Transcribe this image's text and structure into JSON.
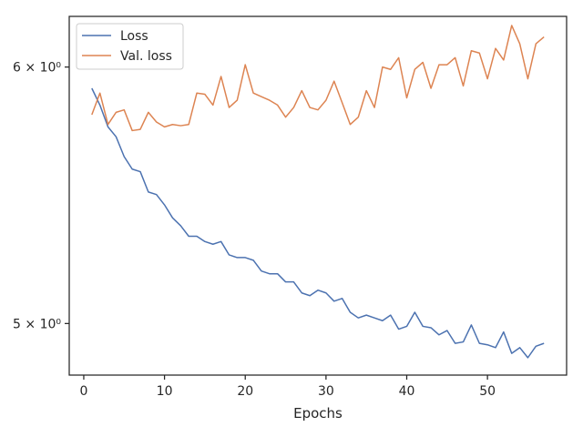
{
  "chart_data": {
    "type": "line",
    "xlabel": "Epochs",
    "ylabel": "",
    "title": "",
    "yscale": "log",
    "xlim": [
      -1.8,
      59.8
    ],
    "ylim": [
      4.82,
      6.22
    ],
    "xticks": [
      0,
      10,
      20,
      30,
      40,
      50
    ],
    "xtick_labels": [
      "0",
      "10",
      "20",
      "30",
      "40",
      "50"
    ],
    "yticks": [
      5,
      6
    ],
    "ytick_labels": [
      "5 × 10⁰",
      "6 × 10⁰"
    ],
    "grid": false,
    "legend_position": "upper left",
    "x": [
      1,
      2,
      3,
      4,
      5,
      6,
      7,
      8,
      9,
      10,
      11,
      12,
      13,
      14,
      15,
      16,
      17,
      18,
      19,
      20,
      21,
      22,
      23,
      24,
      25,
      26,
      27,
      28,
      29,
      30,
      31,
      32,
      33,
      34,
      35,
      36,
      37,
      38,
      39,
      40,
      41,
      42,
      43,
      44,
      45,
      46,
      47,
      48,
      49,
      50,
      51,
      52,
      53,
      54,
      55,
      56,
      57
    ],
    "series": [
      {
        "name": "Loss",
        "color": "#4c72b0",
        "values": [
          5.91,
          5.84,
          5.75,
          5.71,
          5.63,
          5.58,
          5.57,
          5.49,
          5.48,
          5.44,
          5.39,
          5.36,
          5.32,
          5.32,
          5.3,
          5.29,
          5.3,
          5.25,
          5.24,
          5.24,
          5.23,
          5.19,
          5.18,
          5.18,
          5.15,
          5.15,
          5.11,
          5.1,
          5.12,
          5.11,
          5.08,
          5.09,
          5.04,
          5.02,
          5.03,
          5.02,
          5.01,
          5.03,
          4.98,
          4.99,
          5.04,
          4.99,
          4.985,
          4.96,
          4.975,
          4.93,
          4.935,
          4.995,
          4.93,
          4.925,
          4.915,
          4.97,
          4.895,
          4.915,
          4.88,
          4.92,
          4.93
        ]
      },
      {
        "name": "Val. loss",
        "color": "#dd8452",
        "values": [
          5.8,
          5.89,
          5.76,
          5.81,
          5.82,
          5.735,
          5.74,
          5.81,
          5.77,
          5.75,
          5.76,
          5.755,
          5.76,
          5.89,
          5.885,
          5.84,
          5.96,
          5.83,
          5.86,
          6.01,
          5.89,
          5.875,
          5.86,
          5.84,
          5.79,
          5.83,
          5.9,
          5.83,
          5.82,
          5.86,
          5.94,
          5.85,
          5.76,
          5.79,
          5.9,
          5.83,
          6.0,
          5.99,
          6.04,
          5.87,
          5.99,
          6.02,
          5.91,
          6.01,
          6.01,
          6.04,
          5.92,
          6.07,
          6.06,
          5.95,
          6.08,
          6.03,
          6.18,
          6.1,
          5.95,
          6.1,
          6.13
        ]
      }
    ]
  }
}
